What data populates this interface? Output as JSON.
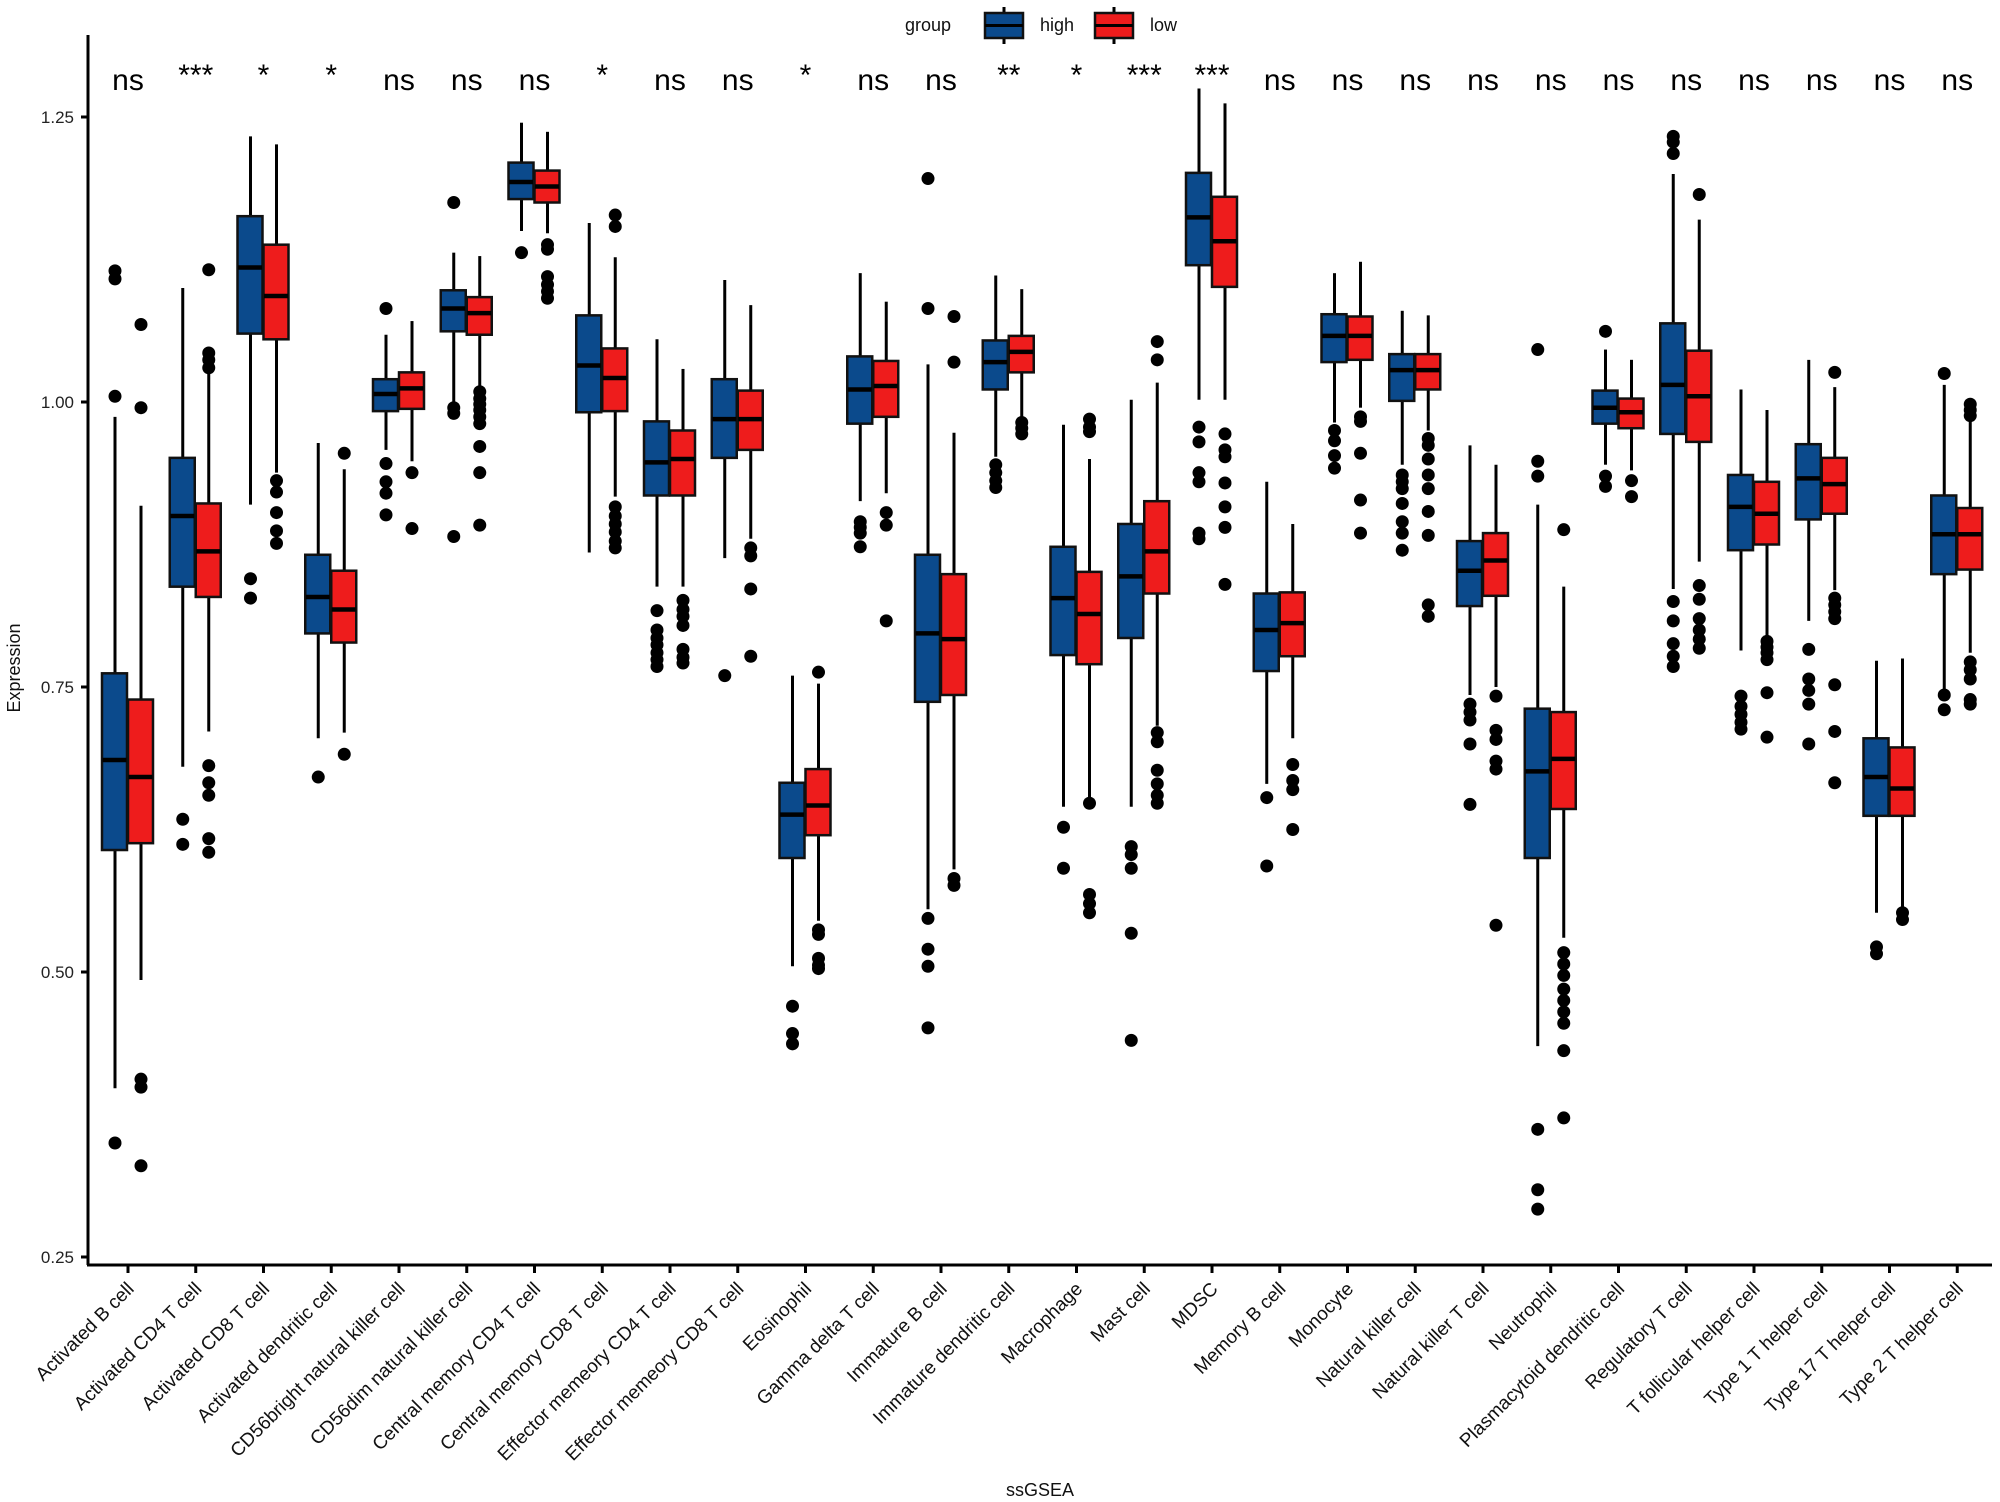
{
  "chart_data": {
    "type": "box",
    "title": "",
    "xlabel": "ssGSEA",
    "ylabel": "Expression",
    "ylim": [
      0.24,
      1.32
    ],
    "yticks": [
      0.25,
      0.5,
      0.75,
      1.0,
      1.25
    ],
    "ytick_labels": [
      "0.25",
      "0.50",
      "0.75",
      "1.00",
      "1.25"
    ],
    "grid": false,
    "legend": {
      "title": "group",
      "placement": "top-center",
      "entries": [
        {
          "name": "high",
          "color": "#0b4a8c"
        },
        {
          "name": "low",
          "color": "#ee1c1c"
        }
      ]
    },
    "categories": [
      "Activated B cell",
      "Activated CD4 T cell",
      "Activated CD8 T cell",
      "Activated dendritic cell",
      "CD56bright natural killer cell",
      "CD56dim natural killer cell",
      "Central memory CD4 T cell",
      "Central memory CD8 T cell",
      "Effector memeory CD4 T cell",
      "Effector memeory CD8 T cell",
      "Eosinophil",
      "Gamma delta T cell",
      "Immature  B cell",
      "Immature dendritic cell",
      "Macrophage",
      "Mast cell",
      "MDSC",
      "Memory B cell",
      "Monocyte",
      "Natural killer cell",
      "Natural killer T cell",
      "Neutrophil",
      "Plasmacytoid dendritic cell",
      "Regulatory T cell",
      "T follicular helper cell",
      "Type 1 T helper cell",
      "Type 17 T helper cell",
      "Type 2 T helper cell"
    ],
    "significance": [
      "ns",
      "***",
      "*",
      "*",
      "ns",
      "ns",
      "ns",
      "*",
      "ns",
      "ns",
      "*",
      "ns",
      "ns",
      "**",
      "*",
      "***",
      "***",
      "ns",
      "ns",
      "ns",
      "ns",
      "ns",
      "ns",
      "ns",
      "ns",
      "ns",
      "ns",
      "ns"
    ],
    "series": [
      {
        "name": "high",
        "boxes": [
          {
            "whislo": 0.398,
            "q1": 0.607,
            "med": 0.686,
            "q3": 0.762,
            "whishi": 0.987,
            "outliers": [
              1.115,
              1.108,
              1.005,
              0.35
            ]
          },
          {
            "whislo": 0.68,
            "q1": 0.838,
            "med": 0.9,
            "q3": 0.951,
            "whishi": 1.1,
            "outliers": [
              0.634,
              0.612
            ]
          },
          {
            "whislo": 0.91,
            "q1": 1.06,
            "med": 1.118,
            "q3": 1.163,
            "whishi": 1.233,
            "outliers": [
              0.845,
              0.828
            ]
          },
          {
            "whislo": 0.705,
            "q1": 0.797,
            "med": 0.829,
            "q3": 0.866,
            "whishi": 0.964,
            "outliers": [
              0.671
            ]
          },
          {
            "whislo": 0.958,
            "q1": 0.992,
            "med": 1.007,
            "q3": 1.02,
            "whishi": 1.059,
            "outliers": [
              1.082,
              0.946,
              0.93,
              0.92,
              0.901
            ]
          },
          {
            "whislo": 1.0,
            "q1": 1.062,
            "med": 1.082,
            "q3": 1.098,
            "whishi": 1.131,
            "outliers": [
              1.175,
              0.995,
              0.99,
              0.882
            ]
          },
          {
            "whislo": 1.15,
            "q1": 1.178,
            "med": 1.193,
            "q3": 1.21,
            "whishi": 1.245,
            "outliers": [
              1.131
            ]
          },
          {
            "whislo": 0.868,
            "q1": 0.991,
            "med": 1.032,
            "q3": 1.076,
            "whishi": 1.157,
            "outliers": []
          },
          {
            "whislo": 0.838,
            "q1": 0.918,
            "med": 0.947,
            "q3": 0.983,
            "whishi": 1.055,
            "outliers": [
              0.817,
              0.8,
              0.793,
              0.787,
              0.78,
              0.774,
              0.768
            ]
          },
          {
            "whislo": 0.863,
            "q1": 0.951,
            "med": 0.985,
            "q3": 1.02,
            "whishi": 1.107,
            "outliers": [
              0.76
            ]
          },
          {
            "whislo": 0.505,
            "q1": 0.6,
            "med": 0.638,
            "q3": 0.666,
            "whishi": 0.76,
            "outliers": [
              0.47,
              0.446,
              0.437
            ]
          },
          {
            "whislo": 0.913,
            "q1": 0.981,
            "med": 1.011,
            "q3": 1.04,
            "whishi": 1.113,
            "outliers": [
              0.895,
              0.89,
              0.885,
              0.873
            ]
          },
          {
            "whislo": 0.555,
            "q1": 0.737,
            "med": 0.797,
            "q3": 0.866,
            "whishi": 1.033,
            "outliers": [
              1.196,
              1.082,
              0.547,
              0.52,
              0.505,
              0.451
            ]
          },
          {
            "whislo": 0.952,
            "q1": 1.011,
            "med": 1.035,
            "q3": 1.054,
            "whishi": 1.111,
            "outliers": [
              0.945,
              0.938,
              0.931,
              0.925
            ]
          },
          {
            "whislo": 0.645,
            "q1": 0.778,
            "med": 0.828,
            "q3": 0.873,
            "whishi": 0.98,
            "outliers": [
              0.627,
              0.591
            ]
          },
          {
            "whislo": 0.645,
            "q1": 0.793,
            "med": 0.847,
            "q3": 0.893,
            "whishi": 1.002,
            "outliers": [
              0.61,
              0.603,
              0.591,
              0.534,
              0.44
            ]
          },
          {
            "whislo": 1.002,
            "q1": 1.12,
            "med": 1.162,
            "q3": 1.201,
            "whishi": 1.275,
            "outliers": [
              0.978,
              0.965,
              0.938,
              0.93,
              0.885,
              0.88
            ]
          },
          {
            "whislo": 0.665,
            "q1": 0.764,
            "med": 0.8,
            "q3": 0.832,
            "whishi": 0.93,
            "outliers": [
              0.653,
              0.593
            ]
          },
          {
            "whislo": 0.982,
            "q1": 1.035,
            "med": 1.058,
            "q3": 1.077,
            "whishi": 1.113,
            "outliers": [
              0.975,
              0.966,
              0.953,
              0.942
            ]
          },
          {
            "whislo": 0.945,
            "q1": 1.001,
            "med": 1.028,
            "q3": 1.042,
            "whishi": 1.08,
            "outliers": [
              0.936,
              0.93,
              0.924,
              0.911,
              0.895,
              0.885,
              0.87
            ]
          },
          {
            "whislo": 0.743,
            "q1": 0.821,
            "med": 0.852,
            "q3": 0.878,
            "whishi": 0.962,
            "outliers": [
              0.735,
              0.728,
              0.721,
              0.7,
              0.647
            ]
          },
          {
            "whislo": 0.435,
            "q1": 0.6,
            "med": 0.676,
            "q3": 0.731,
            "whishi": 0.91,
            "outliers": [
              1.046,
              0.948,
              0.935,
              0.362,
              0.309,
              0.292
            ]
          },
          {
            "whislo": 0.945,
            "q1": 0.981,
            "med": 0.995,
            "q3": 1.01,
            "whishi": 1.046,
            "outliers": [
              1.062,
              0.935,
              0.926
            ]
          },
          {
            "whislo": 0.836,
            "q1": 0.972,
            "med": 1.015,
            "q3": 1.069,
            "whishi": 1.2,
            "outliers": [
              1.233,
              1.228,
              1.218,
              0.825,
              0.808,
              0.788,
              0.777,
              0.768
            ]
          },
          {
            "whislo": 0.782,
            "q1": 0.87,
            "med": 0.908,
            "q3": 0.936,
            "whishi": 1.011,
            "outliers": [
              0.742,
              0.733,
              0.726,
              0.719,
              0.713
            ]
          },
          {
            "whislo": 0.808,
            "q1": 0.897,
            "med": 0.933,
            "q3": 0.963,
            "whishi": 1.037,
            "outliers": [
              0.783,
              0.757,
              0.747,
              0.735,
              0.7
            ]
          },
          {
            "whislo": 0.552,
            "q1": 0.637,
            "med": 0.671,
            "q3": 0.705,
            "whishi": 0.773,
            "outliers": [
              0.522,
              0.516
            ]
          },
          {
            "whislo": 0.748,
            "q1": 0.849,
            "med": 0.884,
            "q3": 0.918,
            "whishi": 1.015,
            "outliers": [
              1.025,
              0.743,
              0.73
            ]
          }
        ]
      },
      {
        "name": "low",
        "boxes": [
          {
            "whislo": 0.493,
            "q1": 0.613,
            "med": 0.671,
            "q3": 0.739,
            "whishi": 0.909,
            "outliers": [
              1.068,
              0.995,
              0.406,
              0.399,
              0.33
            ]
          },
          {
            "whislo": 0.711,
            "q1": 0.829,
            "med": 0.869,
            "q3": 0.911,
            "whishi": 1.028,
            "outliers": [
              1.116,
              1.043,
              1.037,
              1.03,
              0.681,
              0.666,
              0.655,
              0.617,
              0.605
            ]
          },
          {
            "whislo": 0.938,
            "q1": 1.055,
            "med": 1.093,
            "q3": 1.138,
            "whishi": 1.226,
            "outliers": [
              0.931,
              0.921,
              0.903,
              0.887,
              0.876
            ]
          },
          {
            "whislo": 0.71,
            "q1": 0.789,
            "med": 0.818,
            "q3": 0.852,
            "whishi": 0.941,
            "outliers": [
              0.955,
              0.691
            ]
          },
          {
            "whislo": 0.948,
            "q1": 0.994,
            "med": 1.012,
            "q3": 1.026,
            "whishi": 1.071,
            "outliers": [
              0.938,
              0.889
            ]
          },
          {
            "whislo": 1.013,
            "q1": 1.059,
            "med": 1.078,
            "q3": 1.092,
            "whishi": 1.128,
            "outliers": [
              1.009,
              1.003,
              0.998,
              0.993,
              0.987,
              0.981,
              0.961,
              0.938,
              0.892
            ]
          },
          {
            "whislo": 1.148,
            "q1": 1.175,
            "med": 1.189,
            "q3": 1.203,
            "whishi": 1.237,
            "outliers": [
              1.138,
              1.134,
              1.11,
              1.103,
              1.097,
              1.091
            ]
          },
          {
            "whislo": 0.917,
            "q1": 0.992,
            "med": 1.021,
            "q3": 1.047,
            "whishi": 1.127,
            "outliers": [
              1.164,
              1.154,
              0.908,
              0.9,
              0.893,
              0.886,
              0.878,
              0.872
            ]
          },
          {
            "whislo": 0.838,
            "q1": 0.918,
            "med": 0.95,
            "q3": 0.975,
            "whishi": 1.029,
            "outliers": [
              0.826,
              0.818,
              0.812,
              0.804,
              0.783,
              0.776,
              0.771
            ]
          },
          {
            "whislo": 0.88,
            "q1": 0.958,
            "med": 0.985,
            "q3": 1.01,
            "whishi": 1.085,
            "outliers": [
              0.872,
              0.865,
              0.836,
              0.777
            ]
          },
          {
            "whislo": 0.545,
            "q1": 0.62,
            "med": 0.646,
            "q3": 0.678,
            "whishi": 0.753,
            "outliers": [
              0.763,
              0.537,
              0.533,
              0.512,
              0.506,
              0.503
            ]
          },
          {
            "whislo": 0.92,
            "q1": 0.987,
            "med": 1.014,
            "q3": 1.036,
            "whishi": 1.088,
            "outliers": [
              0.903,
              0.892,
              0.808
            ]
          },
          {
            "whislo": 0.59,
            "q1": 0.743,
            "med": 0.792,
            "q3": 0.849,
            "whishi": 0.973,
            "outliers": [
              1.075,
              1.035,
              0.582,
              0.576
            ]
          },
          {
            "whislo": 0.985,
            "q1": 1.026,
            "med": 1.044,
            "q3": 1.058,
            "whishi": 1.099,
            "outliers": [
              0.982,
              0.977,
              0.972
            ]
          },
          {
            "whislo": 0.652,
            "q1": 0.77,
            "med": 0.814,
            "q3": 0.851,
            "whishi": 0.95,
            "outliers": [
              0.985,
              0.978,
              0.974,
              0.648,
              0.568,
              0.56,
              0.552
            ]
          },
          {
            "whislo": 0.716,
            "q1": 0.832,
            "med": 0.869,
            "q3": 0.913,
            "whishi": 1.017,
            "outliers": [
              1.053,
              1.037,
              0.71,
              0.702,
              0.677,
              0.665,
              0.655,
              0.648
            ]
          },
          {
            "whislo": 1.002,
            "q1": 1.101,
            "med": 1.141,
            "q3": 1.18,
            "whishi": 1.262,
            "outliers": [
              0.972,
              0.958,
              0.952,
              0.929,
              0.908,
              0.89,
              0.84
            ]
          },
          {
            "whislo": 0.705,
            "q1": 0.777,
            "med": 0.806,
            "q3": 0.833,
            "whishi": 0.893,
            "outliers": [
              0.682,
              0.668,
              0.66,
              0.625
            ]
          },
          {
            "whislo": 0.995,
            "q1": 1.037,
            "med": 1.058,
            "q3": 1.075,
            "whishi": 1.123,
            "outliers": [
              0.987,
              0.983,
              0.955,
              0.914,
              0.885
            ]
          },
          {
            "whislo": 0.975,
            "q1": 1.011,
            "med": 1.028,
            "q3": 1.042,
            "whishi": 1.076,
            "outliers": [
              0.968,
              0.962,
              0.95,
              0.936,
              0.924,
              0.904,
              0.883,
              0.822,
              0.812
            ]
          },
          {
            "whislo": 0.75,
            "q1": 0.83,
            "med": 0.861,
            "q3": 0.885,
            "whishi": 0.945,
            "outliers": [
              0.742,
              0.712,
              0.704,
              0.685,
              0.678,
              0.541
            ]
          },
          {
            "whislo": 0.53,
            "q1": 0.643,
            "med": 0.687,
            "q3": 0.728,
            "whishi": 0.838,
            "outliers": [
              0.888,
              0.517,
              0.507,
              0.497,
              0.485,
              0.475,
              0.465,
              0.455,
              0.431,
              0.372
            ]
          },
          {
            "whislo": 0.94,
            "q1": 0.977,
            "med": 0.991,
            "q3": 1.003,
            "whishi": 1.037,
            "outliers": [
              0.931,
              0.917
            ]
          },
          {
            "whislo": 0.86,
            "q1": 0.965,
            "med": 1.005,
            "q3": 1.045,
            "whishi": 1.16,
            "outliers": [
              1.182,
              0.839,
              0.827,
              0.81,
              0.8,
              0.792,
              0.784
            ]
          },
          {
            "whislo": 0.795,
            "q1": 0.875,
            "med": 0.902,
            "q3": 0.93,
            "whishi": 0.993,
            "outliers": [
              0.79,
              0.785,
              0.78,
              0.774,
              0.745,
              0.706
            ]
          },
          {
            "whislo": 0.835,
            "q1": 0.902,
            "med": 0.928,
            "q3": 0.951,
            "whishi": 1.013,
            "outliers": [
              1.026,
              0.828,
              0.822,
              0.816,
              0.81,
              0.752,
              0.711,
              0.666
            ]
          },
          {
            "whislo": 0.556,
            "q1": 0.637,
            "med": 0.661,
            "q3": 0.697,
            "whishi": 0.775,
            "outliers": [
              0.552,
              0.546
            ]
          },
          {
            "whislo": 0.78,
            "q1": 0.853,
            "med": 0.884,
            "q3": 0.907,
            "whishi": 0.991,
            "outliers": [
              0.998,
              0.993,
              0.988,
              0.772,
              0.765,
              0.757,
              0.739,
              0.735
            ]
          }
        ]
      }
    ]
  }
}
